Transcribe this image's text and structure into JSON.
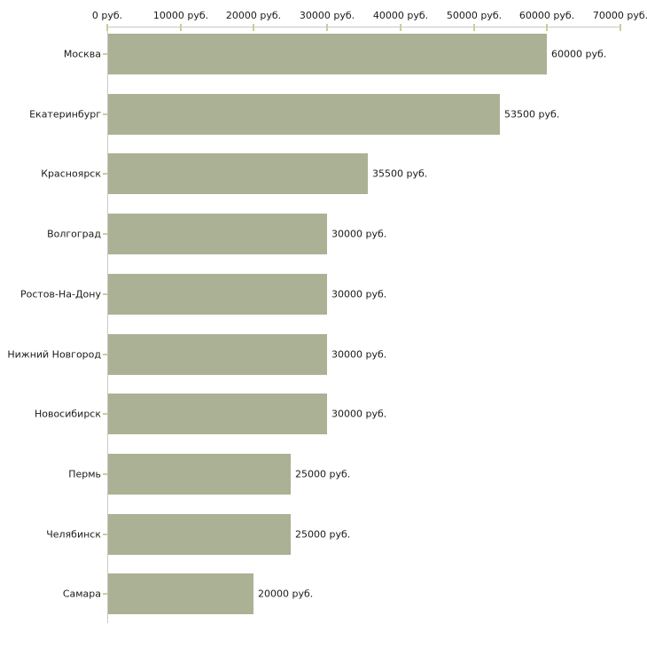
{
  "chart_data": {
    "type": "bar",
    "orientation": "horizontal",
    "title": "",
    "xlabel": "",
    "ylabel": "",
    "grid": false,
    "legend": false,
    "categories": [
      "Москва",
      "Екатеринбург",
      "Красноярск",
      "Волгоград",
      "Ростов-На-Дону",
      "Нижний Новгород",
      "Новосибирск",
      "Пермь",
      "Челябинск",
      "Самара"
    ],
    "values": [
      60000,
      53500,
      35500,
      30000,
      30000,
      30000,
      30000,
      25000,
      25000,
      20000
    ],
    "value_labels": [
      "60000 руб.",
      "53500 руб.",
      "35500 руб.",
      "30000 руб.",
      "30000 руб.",
      "30000 руб.",
      "30000 руб.",
      "25000 руб.",
      "25000 руб.",
      "20000 руб."
    ],
    "x_axis": {
      "position": "top",
      "min": 0,
      "max": 70000,
      "ticks": [
        0,
        10000,
        20000,
        30000,
        40000,
        50000,
        60000,
        70000
      ],
      "tick_labels": [
        "0 руб.",
        "10000 руб.",
        "20000 руб.",
        "30000 руб.",
        "40000 руб.",
        "50000 руб.",
        "60000 руб.",
        "70000 руб."
      ]
    },
    "colors": {
      "bar": "#abb194",
      "axis_line": "#c9c9c9",
      "tick": "#cccc99",
      "text": "#1a1a1a",
      "background": "#ffffff"
    }
  }
}
